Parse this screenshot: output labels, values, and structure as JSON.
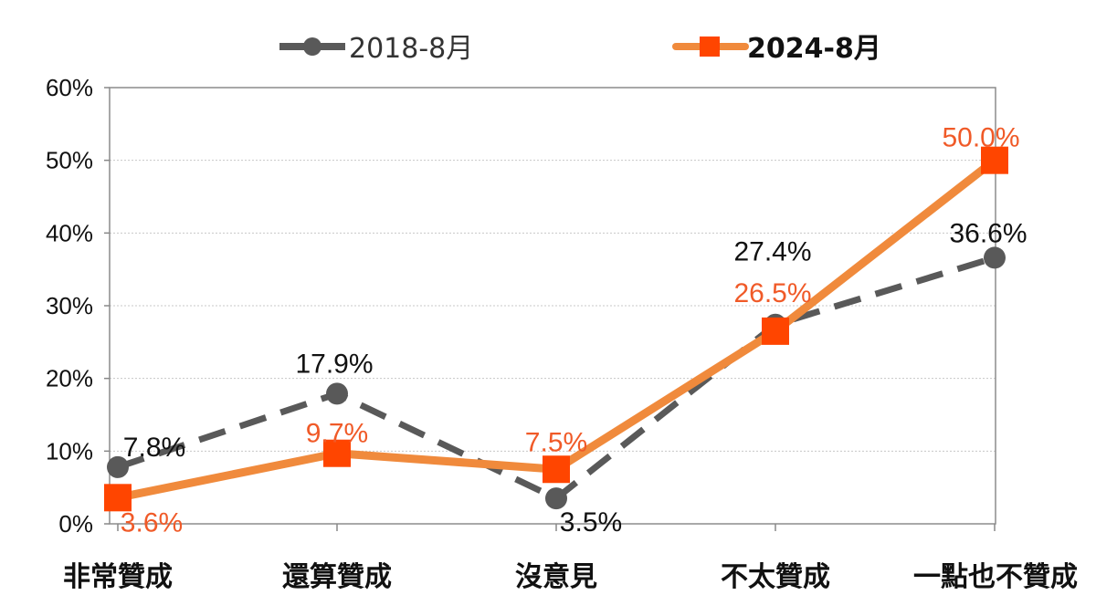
{
  "chart_data": {
    "type": "line",
    "categories": [
      "非常贊成",
      "還算贊成",
      "沒意見",
      "不太贊成",
      "一點也不贊成"
    ],
    "y_ticks": [
      "0%",
      "10%",
      "20%",
      "30%",
      "40%",
      "50%",
      "60%"
    ],
    "ylim": [
      0,
      60
    ],
    "grid": true,
    "legend_position": "top",
    "series": [
      {
        "name": "2018-8月",
        "values": [
          7.8,
          17.9,
          3.5,
          27.4,
          36.6
        ],
        "labels": [
          "7.8%",
          "17.9%",
          "3.5%",
          "27.4%",
          "36.6%"
        ],
        "color": "#595959",
        "label_color": "#111111",
        "style": "dashed",
        "marker": "circle"
      },
      {
        "name": "2024-8月",
        "values": [
          3.6,
          9.7,
          7.5,
          26.5,
          50.0
        ],
        "labels": [
          "3.6%",
          "9.7%",
          "7.5%",
          "26.5%",
          "50.0%"
        ],
        "color": "#F08A3C",
        "marker_color": "#FF4500",
        "label_color": "#F05A28",
        "style": "solid",
        "marker": "square"
      }
    ]
  }
}
